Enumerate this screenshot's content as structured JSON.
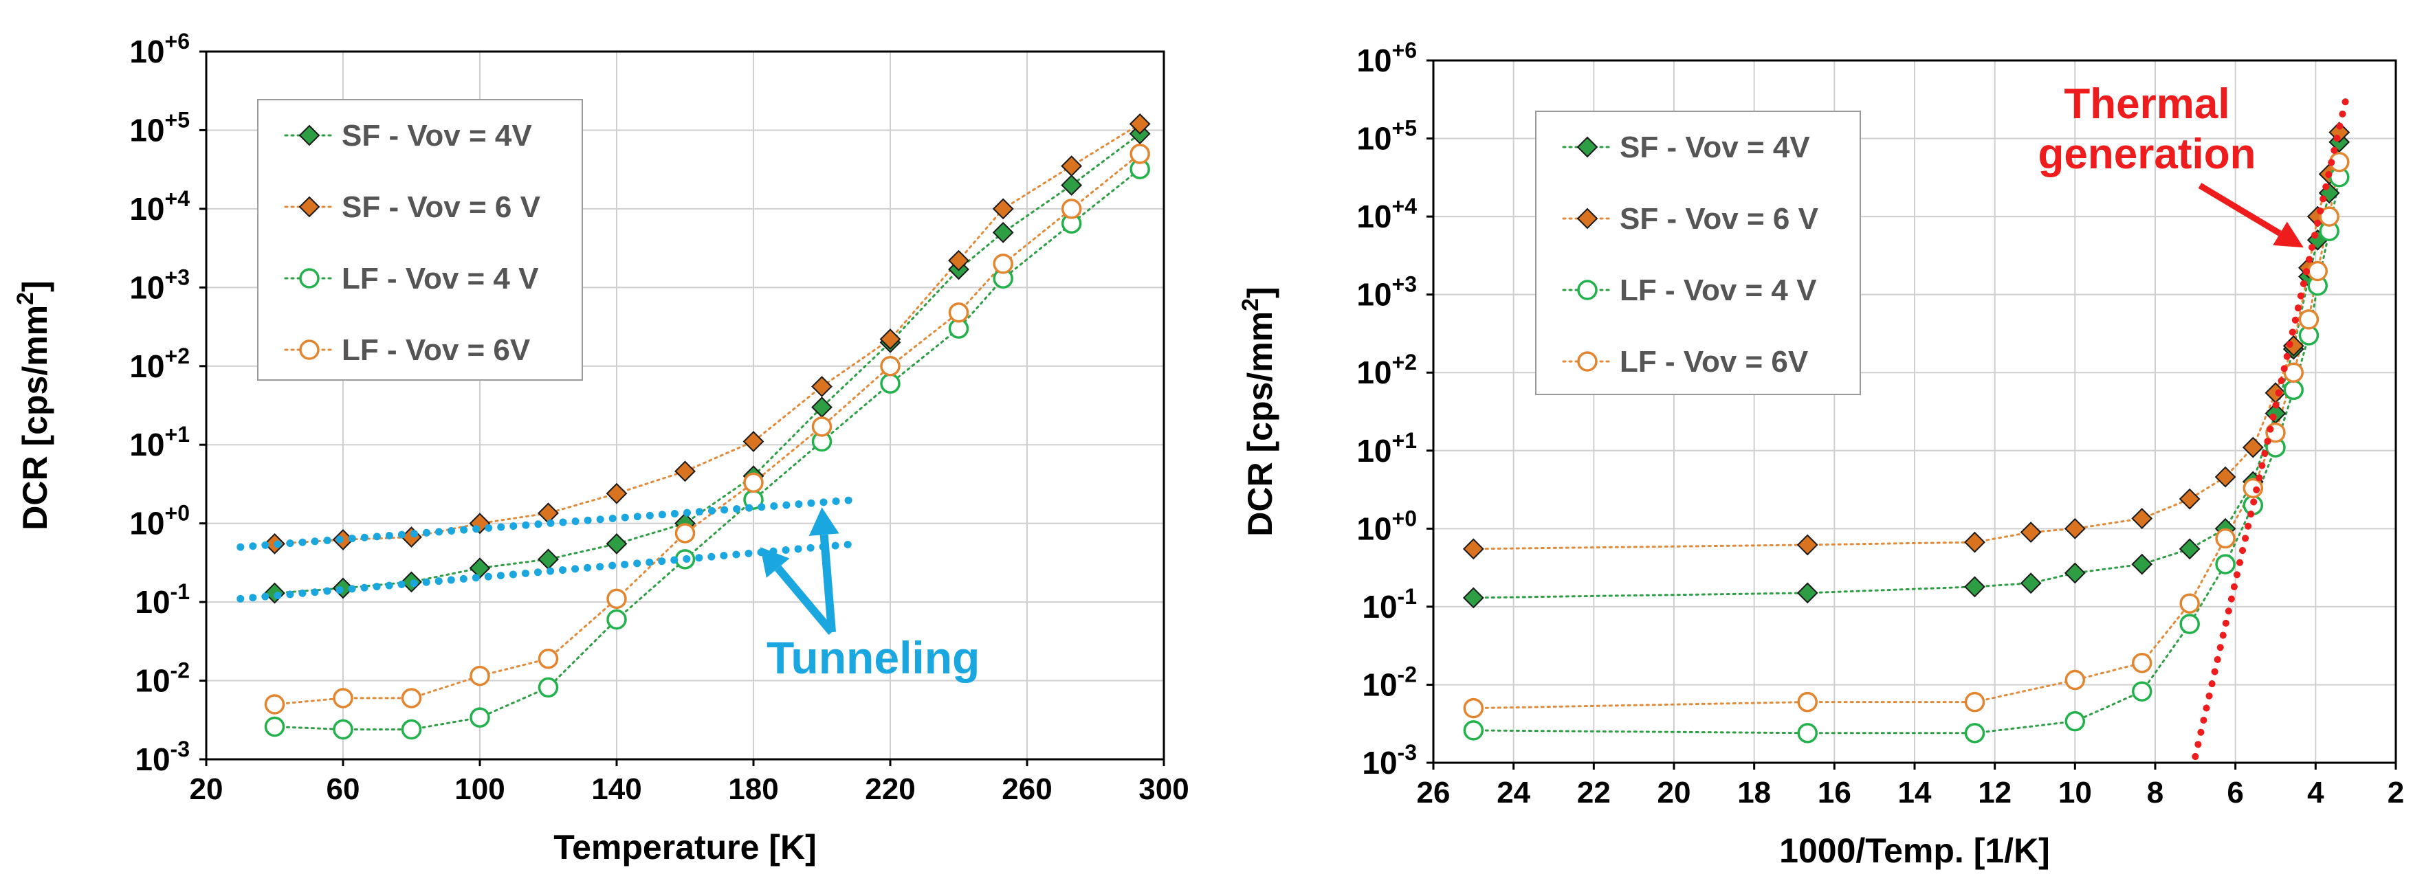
{
  "colors": {
    "sf_marker": "#2e9e45",
    "sf6_marker": "#d9731f",
    "lf4_marker": "#22b24c",
    "lf6_marker": "#e2852e",
    "dot_green": "#2e9e45",
    "dot_orange": "#e08a3a",
    "tunneling": "#1aa7e0",
    "thermal": "#ee1c1c",
    "grid": "#cfcfcf"
  },
  "chart_data": [
    {
      "type": "scatter",
      "xlabel": "Temperature [K]",
      "ylabel_main": "DCR [cps/mm",
      "ylabel_sup": "2",
      "ylabel_end": "]",
      "xlim": [
        20,
        300
      ],
      "ylim_log10": [
        -3,
        6
      ],
      "xticks": [
        "20",
        "60",
        "100",
        "140",
        "180",
        "220",
        "260",
        "300"
      ],
      "yticks": [
        {
          "base": "10",
          "exp": "-3"
        },
        {
          "base": "10",
          "exp": "-2"
        },
        {
          "base": "10",
          "exp": "-1"
        },
        {
          "base": "10",
          "exp": "+0"
        },
        {
          "base": "10",
          "exp": "+1"
        },
        {
          "base": "10",
          "exp": "+2"
        },
        {
          "base": "10",
          "exp": "+3"
        },
        {
          "base": "10",
          "exp": "+4"
        },
        {
          "base": "10",
          "exp": "+5"
        },
        {
          "base": "10",
          "exp": "+6"
        }
      ],
      "legend": [
        "SF - Vov = 4V",
        "SF - Vov = 6 V",
        "LF - Vov = 4 V",
        "LF - Vov = 6V"
      ],
      "series": [
        {
          "name": "SF - Vov = 4V",
          "marker": "diamond",
          "x": [
            40,
            60,
            80,
            100,
            120,
            140,
            160,
            180,
            200,
            220,
            240,
            253,
            273,
            293
          ],
          "y": [
            0.13,
            0.15,
            0.18,
            0.27,
            0.35,
            0.55,
            1.0,
            4.0,
            30,
            200,
            1700,
            5000,
            20000,
            90000
          ]
        },
        {
          "name": "SF - Vov = 6 V",
          "marker": "diamond",
          "x": [
            40,
            60,
            80,
            100,
            120,
            140,
            160,
            180,
            200,
            220,
            240,
            253,
            273,
            293
          ],
          "y": [
            0.55,
            0.62,
            0.67,
            1.0,
            1.35,
            2.4,
            4.6,
            11,
            55,
            220,
            2200,
            10000,
            35000,
            120000
          ]
        },
        {
          "name": "LF - Vov = 4 V",
          "marker": "circle",
          "x": [
            40,
            60,
            80,
            100,
            120,
            140,
            160,
            180,
            200,
            220,
            240,
            253,
            273,
            293
          ],
          "y": [
            0.0026,
            0.0024,
            0.0024,
            0.0034,
            0.0082,
            0.06,
            0.35,
            2.0,
            11,
            60,
            300,
            1300,
            6500,
            32000
          ]
        },
        {
          "name": "LF - Vov = 6V",
          "marker": "circle",
          "x": [
            40,
            60,
            80,
            100,
            120,
            140,
            160,
            180,
            200,
            220,
            240,
            253,
            273,
            293
          ],
          "y": [
            0.005,
            0.006,
            0.006,
            0.0115,
            0.019,
            0.11,
            0.75,
            3.3,
            17,
            100,
            480,
            2000,
            10000,
            50000
          ]
        }
      ],
      "annotations": [
        {
          "text": "Tunneling",
          "type": "fit-lines",
          "lines": [
            [
              [
                30,
                0.5
              ],
              [
                210,
                2.0
              ]
            ],
            [
              [
                30,
                0.11
              ],
              [
                210,
                0.55
              ]
            ]
          ]
        }
      ]
    },
    {
      "type": "scatter",
      "xlabel": "1000/Temp.  [1/K]",
      "ylabel_main": "DCR [cps/mm",
      "ylabel_sup": "2",
      "ylabel_end": "]",
      "xlim": [
        26,
        2
      ],
      "ylim_log10": [
        -3,
        6
      ],
      "xticks": [
        "26",
        "24",
        "22",
        "20",
        "18",
        "16",
        "14",
        "12",
        "10",
        "8",
        "6",
        "4",
        "2"
      ],
      "yticks": [
        {
          "base": "10",
          "exp": "-3"
        },
        {
          "base": "10",
          "exp": "-2"
        },
        {
          "base": "10",
          "exp": "-1"
        },
        {
          "base": "10",
          "exp": "+0"
        },
        {
          "base": "10",
          "exp": "+1"
        },
        {
          "base": "10",
          "exp": "+2"
        },
        {
          "base": "10",
          "exp": "+3"
        },
        {
          "base": "10",
          "exp": "+4"
        },
        {
          "base": "10",
          "exp": "+5"
        },
        {
          "base": "10",
          "exp": "+6"
        }
      ],
      "legend": [
        "SF - Vov = 4V",
        "SF - Vov = 6 V",
        "LF - Vov = 4 V",
        "LF - Vov = 6V"
      ],
      "series": [
        {
          "name": "SF - Vov = 4V",
          "marker": "diamond",
          "x": [
            25,
            16.67,
            12.5,
            11.1,
            10,
            8.33,
            7.14,
            6.25,
            5.56,
            5.0,
            4.55,
            4.17,
            3.95,
            3.66,
            3.41
          ],
          "y": [
            0.13,
            0.15,
            0.18,
            0.2,
            0.27,
            0.35,
            0.55,
            1.0,
            4.0,
            30,
            200,
            1700,
            5000,
            20000,
            90000
          ]
        },
        {
          "name": "SF - Vov = 6 V",
          "marker": "diamond",
          "x": [
            25,
            16.67,
            12.5,
            11.1,
            10,
            8.33,
            7.14,
            6.25,
            5.56,
            5.0,
            4.55,
            4.17,
            3.95,
            3.66,
            3.41
          ],
          "y": [
            0.55,
            0.62,
            0.67,
            0.9,
            1.0,
            1.35,
            2.4,
            4.6,
            11,
            55,
            220,
            2200,
            10000,
            35000,
            120000
          ]
        },
        {
          "name": "LF - Vov = 4 V",
          "marker": "circle",
          "x": [
            25,
            16.67,
            12.5,
            10,
            8.33,
            7.14,
            6.25,
            5.56,
            5.0,
            4.55,
            4.17,
            3.95,
            3.66,
            3.41
          ],
          "y": [
            0.0026,
            0.0024,
            0.0024,
            0.0034,
            0.0082,
            0.06,
            0.35,
            2.0,
            11,
            60,
            300,
            1300,
            6500,
            32000
          ]
        },
        {
          "name": "LF - Vov = 6V",
          "marker": "circle",
          "x": [
            25,
            16.67,
            12.5,
            10,
            8.33,
            7.14,
            6.25,
            5.56,
            5.0,
            4.55,
            4.17,
            3.95,
            3.66,
            3.41
          ],
          "y": [
            0.005,
            0.006,
            0.006,
            0.0115,
            0.019,
            0.11,
            0.75,
            3.3,
            17,
            100,
            480,
            2000,
            10000,
            50000
          ]
        }
      ],
      "annotations": [
        {
          "text_line1": "Thermal",
          "text_line2": "generation",
          "type": "fit-line",
          "line": [
            [
              7.0,
              0.0012
            ],
            [
              3.2,
              400000
            ]
          ]
        }
      ]
    }
  ]
}
